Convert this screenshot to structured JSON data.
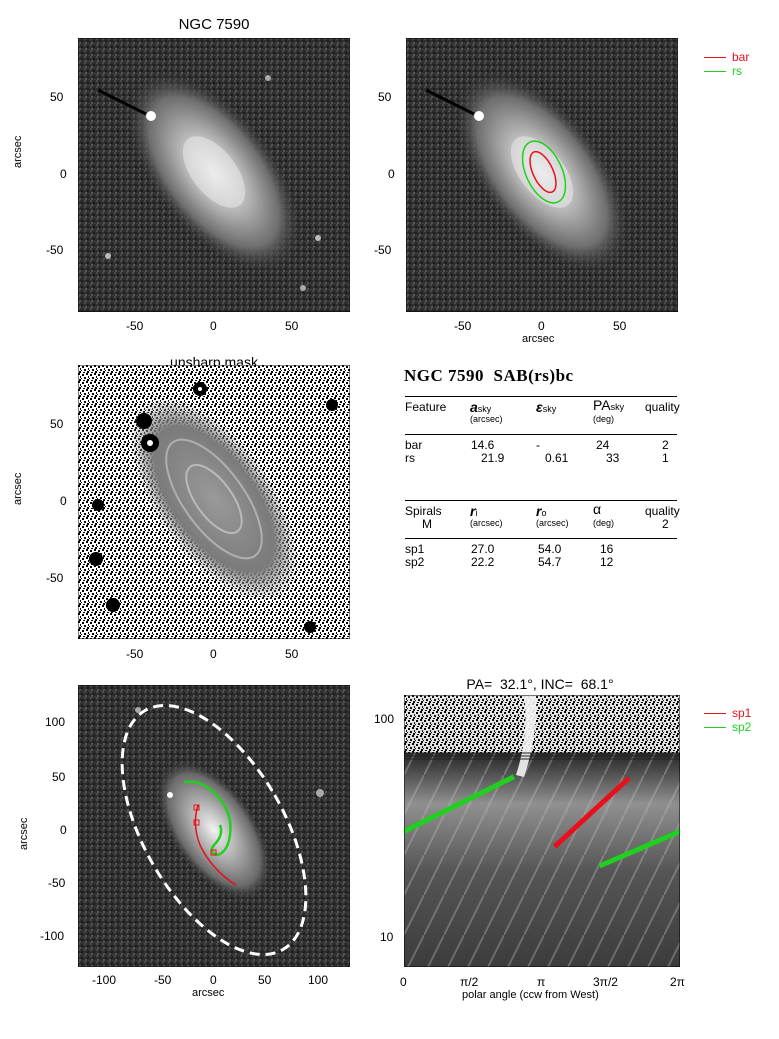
{
  "panels": {
    "optical": {
      "title": "NGC 7590",
      "ylabel": "arcsec",
      "xticks": [
        "-50",
        "0",
        "50"
      ],
      "yticks": [
        "50",
        "0",
        "-50"
      ]
    },
    "ellipses": {
      "xlabel": "arcsec",
      "xticks": [
        "-50",
        "0",
        "50"
      ],
      "yticks": [
        "50",
        "0",
        "-50"
      ],
      "legend": [
        {
          "label": "bar",
          "color": "#e8101a"
        },
        {
          "label": "rs",
          "color": "#1fd01f"
        }
      ]
    },
    "unsharp": {
      "title": "unsharp mask",
      "ylabel": "arcsec",
      "xticks": [
        "-50",
        "0",
        "50"
      ],
      "yticks": [
        "50",
        "0",
        "-50"
      ]
    },
    "spiral_overlay": {
      "xlabel": "arcsec",
      "ylabel": "arcsec",
      "xticks": [
        "-100",
        "-50",
        "0",
        "50",
        "100"
      ],
      "yticks": [
        "100",
        "50",
        "0",
        "-50",
        "-100"
      ]
    },
    "polar": {
      "title": "PA=  32.1°, INC=  68.1°",
      "xlabel": "polar angle (ccw from West)",
      "xticks": [
        "0",
        "π/2",
        "π",
        "3π/2",
        "2π"
      ],
      "yticks": [
        "100",
        "10"
      ],
      "legend": [
        {
          "label": "sp1",
          "color": "#e8101a"
        },
        {
          "label": "sp2",
          "color": "#1fd01f"
        }
      ]
    }
  },
  "table": {
    "heading": "NGC 7590  SAB(rs)bc",
    "feature_header": {
      "c1": "Feature",
      "c2_sym": "a",
      "c2_sub": "sky",
      "c2_unit": "(arcsec)",
      "c3_sym": "ε",
      "c3_sub": "sky",
      "c4_sym": "PA",
      "c4_sub": "sky",
      "c4_unit": "(deg)",
      "c5": "quality"
    },
    "feature_rows": [
      [
        "bar",
        "14.6",
        "-",
        "24",
        "2"
      ],
      [
        "rs",
        "21.9",
        "0.61",
        "33",
        "1"
      ]
    ],
    "spiral_header": {
      "c1": "Spirals",
      "c1b": "M",
      "c2_sym": "r",
      "c2_sub": "i",
      "c2_unit": "(arcsec)",
      "c3_sym": "r",
      "c3_sub": "o",
      "c3_unit": "(arcsec)",
      "c4_sym": "α",
      "c4_unit": "(deg)",
      "c5": "quality",
      "c5b": "2"
    },
    "spiral_rows": [
      [
        "sp1",
        "27.0",
        "54.0",
        "16"
      ],
      [
        "sp2",
        "22.2",
        "54.7",
        "12"
      ]
    ]
  },
  "chart_data": {
    "type": "line",
    "title": "PA=  32.1°, INC=  68.1°",
    "xlabel": "polar angle (ccw from West)",
    "xlim": [
      0,
      6.2832
    ],
    "ylim": [
      8,
      125
    ],
    "yscale": "log",
    "series": [
      {
        "name": "sp1",
        "color": "#e8101a",
        "x": [
          3.43,
          5.12
        ],
        "y": [
          27.0,
          54.0
        ]
      },
      {
        "name": "sp2",
        "color": "#1fd01f",
        "x": [
          0.0,
          2.5
        ],
        "y": [
          31.5,
          54.7
        ]
      },
      {
        "name": "sp2",
        "color": "#1fd01f",
        "x": [
          4.45,
          6.2832
        ],
        "y": [
          22.2,
          31.5
        ]
      }
    ]
  }
}
